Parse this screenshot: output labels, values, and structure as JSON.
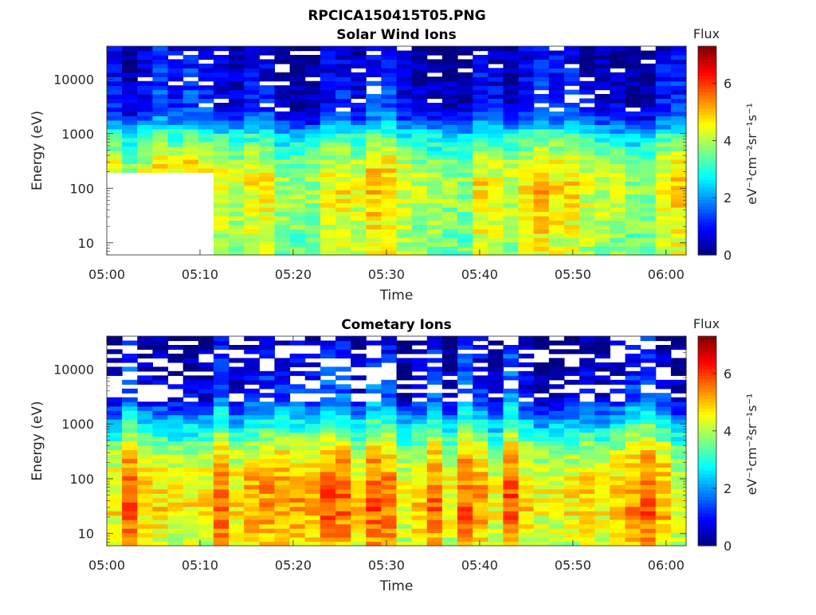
{
  "figure_title": "RPCICA150415T05.PNG",
  "chart_data": [
    {
      "type": "heatmap",
      "title": "Solar Wind Ions",
      "xlabel": "Time",
      "ylabel": "Energy (eV)",
      "x_range": [
        "05:00",
        "06:02"
      ],
      "x_ticks": [
        "05:00",
        "05:10",
        "05:20",
        "05:30",
        "05:40",
        "05:50",
        "06:00"
      ],
      "y_scale": "log",
      "y_range": [
        6,
        40000
      ],
      "y_ticks": [
        "10",
        "100",
        "1000",
        "10000"
      ],
      "colorbar": {
        "title": "Flux",
        "label": "eV⁻¹cm⁻²sr⁻¹s⁻¹",
        "range": [
          0,
          7.3
        ],
        "ticks": [
          "0",
          "2",
          "4",
          "6"
        ],
        "colormap": "jet"
      },
      "no_data_region": {
        "time": [
          "05:00",
          "05:10.5"
        ],
        "energy": [
          6,
          210
        ]
      },
      "band_profile": {
        "description_free": true,
        "energy_levels_eV": [
          6,
          100,
          250,
          1000,
          1500,
          3000,
          40000
        ],
        "typical_flux": [
          3.9,
          4.4,
          4.2,
          2.8,
          1.8,
          0.9,
          0.4
        ]
      }
    },
    {
      "type": "heatmap",
      "title": "Cometary Ions",
      "xlabel": "Time",
      "ylabel": "Energy (eV)",
      "x_range": [
        "05:00",
        "06:02"
      ],
      "x_ticks": [
        "05:00",
        "05:10",
        "05:20",
        "05:30",
        "05:40",
        "05:50",
        "06:00"
      ],
      "y_scale": "log",
      "y_range": [
        6,
        40000
      ],
      "y_ticks": [
        "10",
        "100",
        "1000",
        "10000"
      ],
      "colorbar": {
        "title": "Flux",
        "label": "eV⁻¹cm⁻²sr⁻¹s⁻¹",
        "range": [
          0,
          7.3
        ],
        "ticks": [
          "0",
          "2",
          "4",
          "6"
        ],
        "colormap": "jet"
      },
      "band_profile": {
        "energy_levels_eV": [
          6,
          30,
          100,
          300,
          1000,
          3000,
          40000
        ],
        "typical_flux": [
          4.6,
          5.2,
          5.0,
          4.4,
          2.8,
          1.2,
          0.4
        ]
      }
    }
  ]
}
